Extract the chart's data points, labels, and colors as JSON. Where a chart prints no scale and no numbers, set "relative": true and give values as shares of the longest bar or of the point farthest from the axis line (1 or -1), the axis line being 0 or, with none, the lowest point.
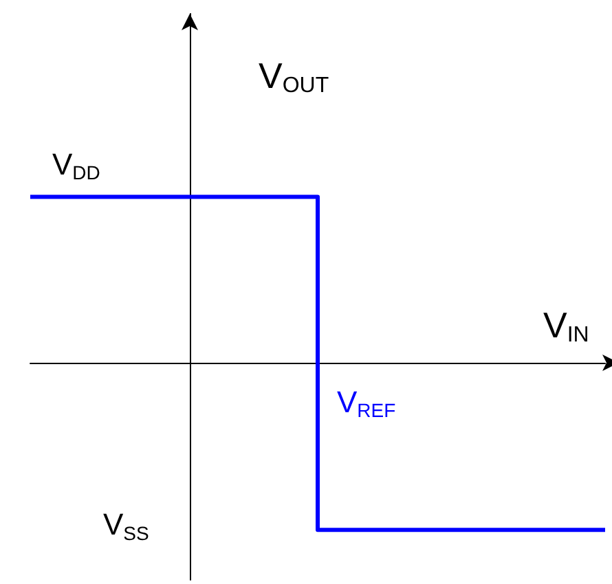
{
  "chart_data": {
    "type": "step",
    "relative": true,
    "xlabel": "V$_{IN}$",
    "ylabel": "V$_{OUT}$",
    "categories": [
      null,
      null,
      null
    ],
    "series": [
      {
        "color": "#0000ff",
        "values": [
          1,
          -1,
          -1
        ]
      }
    ],
    "annotations": [
      "V$_{DD}$",
      "V$_{REF}$",
      "V$_{SS}$"
    ],
    "marker": "none",
    "line_style": "solid"
  }
}
